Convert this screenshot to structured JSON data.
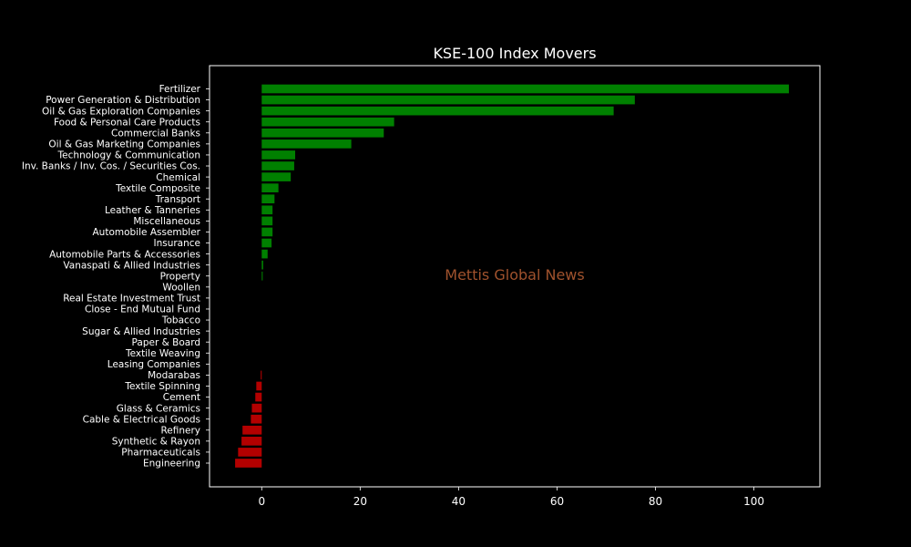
{
  "chart_data": {
    "type": "bar",
    "orientation": "horizontal",
    "title": "KSE-100 Index Movers",
    "xlabel": "",
    "ylabel": "",
    "categories": [
      "Fertilizer",
      "Power Generation & Distribution",
      "Oil & Gas Exploration Companies",
      "Food & Personal Care Products",
      "Commercial Banks",
      "Oil & Gas Marketing Companies",
      "Technology & Communication",
      "Inv. Banks / Inv. Cos. / Securities Cos.",
      "Chemical",
      "Textile Composite",
      "Transport",
      "Leather & Tanneries",
      "Miscellaneous",
      "Automobile Assembler",
      "Insurance",
      "Automobile Parts & Accessories",
      "Vanaspati & Allied Industries",
      "Property",
      "Woollen",
      "Real Estate Investment Trust",
      "Close - End Mutual Fund",
      "Tobacco",
      "Sugar & Allied Industries",
      "Paper & Board",
      "Textile Weaving",
      "Leasing Companies",
      "Modarabas",
      "Textile Spinning",
      "Cement",
      "Glass & Ceramics",
      "Cable & Electrical Goods",
      "Refinery",
      "Synthetic & Rayon",
      "Pharmaceuticals",
      "Engineering"
    ],
    "values": [
      107.1,
      75.8,
      71.5,
      26.9,
      24.8,
      18.2,
      6.8,
      6.6,
      5.9,
      3.4,
      2.6,
      2.2,
      2.2,
      2.2,
      2.0,
      1.2,
      0.3,
      0.2,
      0,
      0,
      0,
      0,
      0,
      0,
      0,
      0,
      -0.2,
      -1.1,
      -1.3,
      -2.0,
      -2.2,
      -3.9,
      -4.1,
      -4.8,
      -5.4
    ],
    "xlim": [
      -10.6,
      113.4
    ],
    "xticks": [
      0,
      20,
      40,
      60,
      80,
      100
    ],
    "grid": false,
    "legend": "none",
    "colors": {
      "positive": "#008000",
      "negative": "#b30000",
      "background": "#000000",
      "text": "#ffffff",
      "watermark": "#a0522d"
    },
    "watermark": "Mettis Global News"
  }
}
